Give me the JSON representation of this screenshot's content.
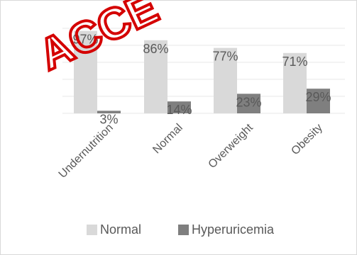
{
  "chart_data": {
    "type": "bar",
    "categories": [
      "Undernutrition",
      "Normal",
      "Overweight",
      "Obesity"
    ],
    "series": [
      {
        "name": "Normal",
        "values": [
          97,
          86,
          77,
          71
        ],
        "labels": [
          "97%",
          "86%",
          "77%",
          "71%"
        ],
        "color": "#d9d9d9"
      },
      {
        "name": "Hyperuricemia",
        "values": [
          3,
          14,
          23,
          29
        ],
        "labels": [
          "3%",
          "14%",
          "23%",
          "29%"
        ],
        "color": "#7f7f7f"
      }
    ],
    "ylim": [
      0,
      100
    ],
    "grid": true,
    "legend_position": "bottom",
    "x_tick_rotation": -45
  },
  "watermark": {
    "text": "ACCE",
    "color": "#d40000"
  }
}
